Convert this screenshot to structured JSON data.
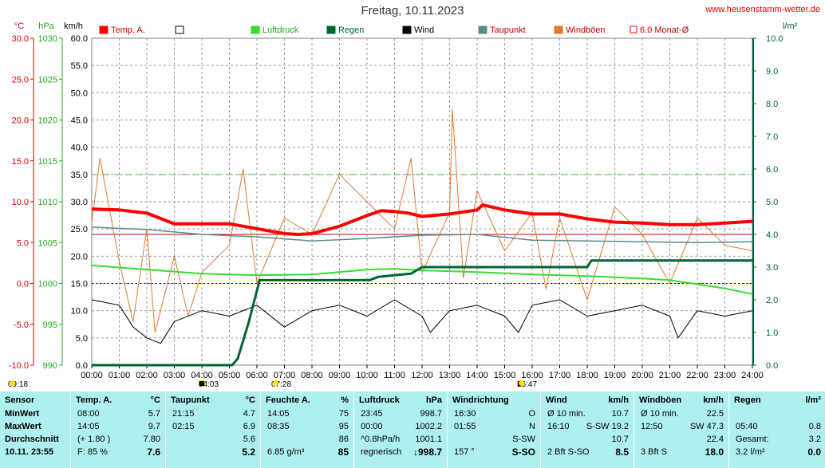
{
  "header": {
    "title": "Freitag, 10.11.2023",
    "website": "www.heusenstamm-wetter.de"
  },
  "axes": {
    "units": {
      "temp": "°C",
      "pressure": "hPa",
      "wind": "km/h",
      "rain": "l/m²"
    },
    "temp_ticks": [
      "30.0",
      "25.0",
      "20.0",
      "15.0",
      "10.0",
      "5.0",
      "0.0",
      "-5.0",
      "-10.0"
    ],
    "pressure_ticks": [
      "1030",
      "1025",
      "1020",
      "1015",
      "1010",
      "1005",
      "1000",
      "995",
      "990"
    ],
    "wind_ticks": [
      "60.0",
      "55.0",
      "50.0",
      "45.0",
      "40.0",
      "35.0",
      "30.0",
      "25.0",
      "20.0",
      "15.0",
      "10.0",
      "5.0",
      "0.0"
    ],
    "rain_ticks": [
      "10.0",
      "9.0",
      "8.0",
      "7.0",
      "6.0",
      "5.0",
      "4.0",
      "3.0",
      "2.0",
      "1.0",
      "0.0"
    ],
    "time_ticks": [
      "00:00",
      "01:00",
      "02:00",
      "03:00",
      "04:00",
      "05:00",
      "06:00",
      "07:00",
      "08:00",
      "09:00",
      "10:00",
      "11:00",
      "12:00",
      "13:00",
      "14:00",
      "15:00",
      "16:00",
      "17:00",
      "18:00",
      "19:00",
      "20:00",
      "21:00",
      "22:00",
      "23:00",
      "24:00"
    ]
  },
  "legend": [
    {
      "label": "Temp. A.",
      "color": "#ff0000"
    },
    {
      "label": "",
      "color": "#ffffff"
    },
    {
      "label": "Luftdruck",
      "color": "#33dd33"
    },
    {
      "label": "Regen",
      "color": "#006633"
    },
    {
      "label": "Wind",
      "color": "#000000"
    },
    {
      "label": "Taupunkt",
      "color": "#5a8a8a"
    },
    {
      "label": "Windböen",
      "color": "#e07a30"
    },
    {
      "label": "6.0 Monat-Ø",
      "color": "#ff0000"
    }
  ],
  "astro": {
    "sunrise_yesterday": "09:18",
    "moonrise": "04:03",
    "sunrise": "07:28",
    "moonset": "16:47"
  },
  "chart_data": {
    "type": "line",
    "x_range": [
      "00:00",
      "24:00"
    ],
    "series": [
      {
        "name": "Temp. A.",
        "unit": "°C",
        "x": [
          0,
          1,
          2,
          3,
          4,
          5,
          6,
          7,
          7.5,
          8,
          9,
          10,
          10.5,
          11,
          11.5,
          12,
          13,
          14,
          14.2,
          15,
          16,
          17,
          18,
          19,
          20,
          21,
          22,
          23,
          24
        ],
        "y": [
          9.1,
          9.0,
          8.6,
          7.3,
          7.3,
          7.3,
          6.7,
          6.1,
          6.0,
          6.1,
          7.0,
          8.3,
          8.9,
          8.8,
          8.6,
          8.2,
          8.5,
          9.0,
          9.6,
          9.0,
          8.5,
          8.5,
          7.9,
          7.5,
          7.4,
          7.2,
          7.2,
          7.4,
          7.6
        ]
      },
      {
        "name": "Taupunkt",
        "unit": "°C",
        "x": [
          0,
          2,
          4,
          6,
          8,
          10,
          12,
          14,
          16,
          18,
          20,
          22,
          24
        ],
        "y": [
          6.9,
          6.6,
          6.0,
          5.7,
          5.2,
          5.5,
          5.9,
          6.0,
          5.3,
          5.2,
          5.1,
          5.0,
          5.1
        ]
      },
      {
        "name": "Luftdruck",
        "unit": "hPa",
        "x": [
          0,
          2,
          4,
          6,
          8,
          10,
          11,
          12,
          14,
          16,
          18,
          20,
          21,
          22,
          23,
          24
        ],
        "y": [
          1002.2,
          1001.7,
          1001.2,
          1001.0,
          1001.1,
          1001.7,
          1001.8,
          1001.6,
          1001.4,
          1001.1,
          1000.9,
          1000.6,
          1000.4,
          999.9,
          999.4,
          998.7
        ]
      },
      {
        "name": "Regen",
        "unit": "l/m²",
        "x": [
          0,
          2.45,
          5.1,
          5.3,
          5.7,
          6.1,
          10.1,
          10.4,
          11.6,
          12,
          18,
          18.15,
          24
        ],
        "y": [
          0,
          0,
          0,
          0.2,
          1.3,
          2.6,
          2.6,
          2.7,
          2.8,
          3.0,
          3.0,
          3.2,
          3.2
        ]
      },
      {
        "name": "Wind",
        "unit": "km/h",
        "x": [
          0,
          1,
          1.5,
          2,
          2.5,
          3,
          4,
          5,
          6,
          7,
          8,
          9,
          10,
          11,
          12,
          12.3,
          13,
          14,
          15,
          15.5,
          16,
          17,
          18,
          19,
          20,
          21,
          21.3,
          22,
          23,
          24
        ],
        "y": [
          12,
          11,
          7,
          5,
          4,
          8,
          10,
          9,
          11,
          7,
          10,
          11,
          9,
          12,
          9,
          6,
          10,
          11,
          9,
          6,
          11,
          12,
          9,
          10,
          11,
          9,
          5,
          10,
          9,
          10
        ]
      },
      {
        "name": "Windböen",
        "unit": "km/h",
        "x": [
          0,
          0.3,
          1,
          1.5,
          2,
          2.3,
          3,
          3.5,
          4,
          5,
          5.5,
          6,
          7,
          8,
          9,
          10,
          11,
          11.6,
          12,
          13,
          13.1,
          13.5,
          14,
          15,
          16,
          16.5,
          17,
          18,
          19,
          20,
          21,
          22,
          23,
          24
        ],
        "y": [
          26,
          38,
          19,
          8,
          25,
          6,
          20,
          9,
          17,
          22,
          36,
          15,
          27,
          24,
          35,
          30,
          25,
          38,
          17,
          28,
          47,
          16,
          32,
          21,
          28,
          14,
          27,
          12,
          29,
          24,
          15,
          27,
          22,
          21
        ]
      }
    ],
    "reference_lines": [
      {
        "label": "6.0 Monat-Ø",
        "unit": "°C",
        "value": 6.0
      },
      {
        "unit": "hPa",
        "value": 1000
      },
      {
        "unit": "km/h",
        "value": 35
      }
    ]
  },
  "table": {
    "row_labels": [
      "Sensor",
      "MinWert",
      "MaxWert",
      "Durchschnitt",
      "10.11. 23:55"
    ],
    "temp": {
      "header": "Temp. A.",
      "unit": "°C",
      "rows": [
        [
          "08:00",
          "5.7"
        ],
        [
          "14:05",
          "9.7"
        ],
        [
          "(+ 1.80 )",
          "7.80"
        ],
        [
          "F: 85 %",
          "7.6"
        ]
      ]
    },
    "dew": {
      "header": "Taupunkt",
      "unit": "°C",
      "rows": [
        [
          "21:15",
          "4.7"
        ],
        [
          "02:15",
          "6.9"
        ],
        [
          "",
          "5.6"
        ],
        [
          "",
          "5.2"
        ]
      ]
    },
    "humidity": {
      "header": "Feuchte A.",
      "unit": "%",
      "rows": [
        [
          "14:05",
          "75"
        ],
        [
          "08:35",
          "95"
        ],
        [
          "",
          "86"
        ],
        [
          "6.85 g/m³",
          "85"
        ]
      ]
    },
    "pressure": {
      "header": "Luftdruck",
      "unit": "hPa",
      "rows": [
        [
          "23:45",
          "998.7"
        ],
        [
          "00:00",
          "1002.2"
        ],
        [
          "^0.8hPa/h",
          "1001.1"
        ],
        [
          "regnerisch",
          "↓998.7"
        ]
      ]
    },
    "winddir": {
      "header": "Windrichtung",
      "rows": [
        [
          "16:30",
          "O"
        ],
        [
          "01:55",
          "N"
        ],
        [
          "",
          "S-SW"
        ],
        [
          "157 °",
          "S-SO"
        ]
      ]
    },
    "wind": {
      "header": "Wind",
      "unit": "km/h",
      "rows": [
        [
          "Ø 10 min.",
          "10.7"
        ],
        [
          "16:10",
          "S-SW 19.2"
        ],
        [
          "",
          "10.7"
        ],
        [
          "2 Bft S-SO",
          "8.5"
        ]
      ]
    },
    "gust": {
      "header": "Windböen",
      "unit": "km/h",
      "rows": [
        [
          "Ø 10 min.",
          "22.5"
        ],
        [
          "12:50",
          "SW 47.3"
        ],
        [
          "",
          "22.4"
        ],
        [
          "3 Bft S",
          "18.0"
        ]
      ]
    },
    "rain": {
      "header": "Regen",
      "unit": "l/m²",
      "rows": [
        [
          "05:40",
          "0.8"
        ],
        [
          "Gesamt:",
          "3.2"
        ],
        [
          "3.2 l/m²",
          "0.0"
        ]
      ]
    }
  }
}
